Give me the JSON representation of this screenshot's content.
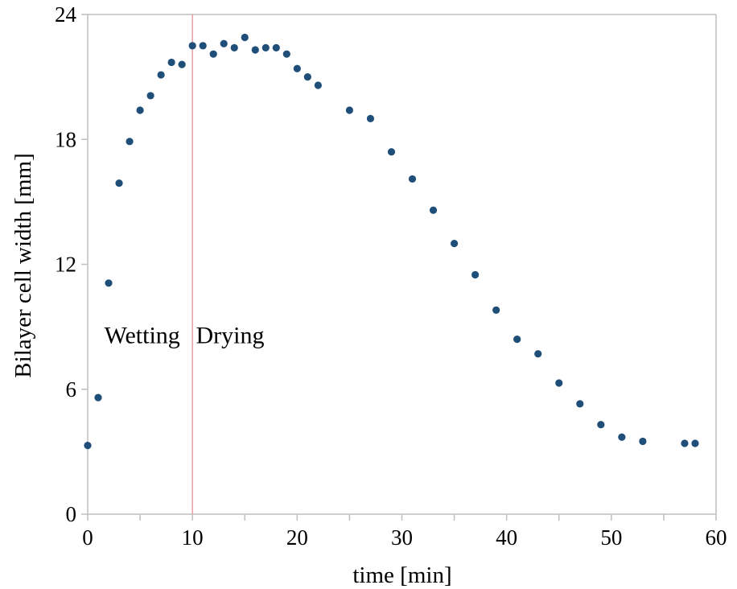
{
  "chart_data": {
    "type": "scatter",
    "title": "",
    "xlabel": "time [min]",
    "ylabel": "Bilayer cell width [mm]",
    "xlim": [
      0,
      60
    ],
    "ylim": [
      0,
      24
    ],
    "xticks": [
      0,
      10,
      20,
      30,
      40,
      50,
      60
    ],
    "yticks": [
      0,
      6,
      12,
      18,
      24
    ],
    "grid": false,
    "marker_color": "#1f4e79",
    "divider_color": "#e6a1a6",
    "divider_x": 10,
    "annotations": [
      {
        "text": "Wetting",
        "x": 5.2,
        "y": 8.6
      },
      {
        "text": "Drying",
        "x": 13.6,
        "y": 8.6
      }
    ],
    "series": [
      {
        "x": [
          0,
          1,
          2,
          3,
          4,
          5,
          6,
          7,
          8,
          9,
          10,
          11,
          12,
          13,
          14,
          15,
          16,
          17,
          18,
          19,
          20,
          21,
          22,
          25,
          27,
          29,
          31,
          33,
          35,
          37,
          39,
          41,
          43,
          45,
          47,
          49,
          51,
          53,
          57,
          58
        ],
        "y": [
          3.3,
          5.6,
          11.1,
          15.9,
          17.9,
          19.4,
          20.1,
          21.1,
          21.7,
          21.6,
          22.5,
          22.5,
          22.1,
          22.6,
          22.4,
          22.9,
          22.3,
          22.4,
          22.4,
          22.1,
          21.4,
          21.0,
          20.6,
          19.4,
          19.0,
          17.4,
          16.1,
          14.6,
          13.0,
          11.5,
          9.8,
          8.4,
          7.7,
          6.3,
          5.3,
          4.3,
          3.7,
          3.5,
          3.4,
          3.4
        ]
      }
    ]
  }
}
